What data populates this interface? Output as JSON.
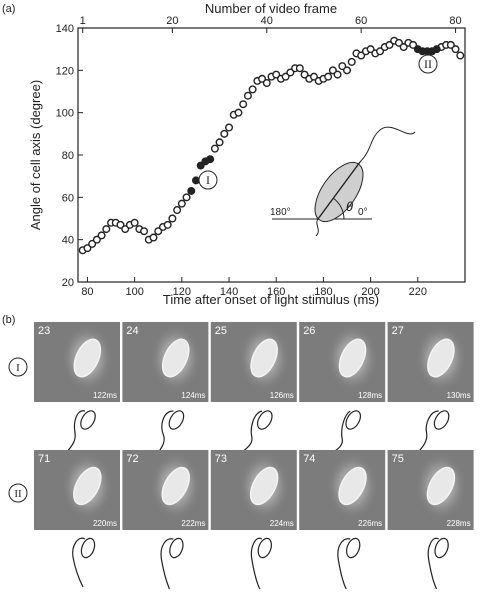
{
  "panel_a_label": "(a)",
  "panel_b_label": "(b)",
  "chart_data": {
    "type": "scatter",
    "title": "",
    "xlabel": "Time after onset of light stimulus (ms)",
    "ylabel": "Angle of cell axis (degree)",
    "top_xlabel": "Number of video frame",
    "xlim": [
      76,
      240
    ],
    "ylim": [
      20,
      140
    ],
    "xticks": [
      80,
      100,
      120,
      140,
      160,
      180,
      200,
      220
    ],
    "yticks": [
      20,
      40,
      60,
      80,
      100,
      120,
      140
    ],
    "top_xticks": [
      1,
      20,
      40,
      60,
      80
    ],
    "grid": false,
    "series": [
      {
        "marker": "open-circle",
        "x": [
          78,
          80,
          82,
          84,
          86,
          88,
          90,
          92,
          94,
          96,
          98,
          100,
          102,
          104,
          106,
          108,
          110,
          112,
          114,
          116,
          118,
          120,
          122,
          134,
          136,
          138,
          140,
          142,
          144,
          146,
          148,
          150,
          152,
          154,
          156,
          158,
          160,
          162,
          164,
          166,
          168,
          170,
          172,
          174,
          176,
          178,
          180,
          182,
          184,
          186,
          188,
          190,
          192,
          194,
          196,
          198,
          200,
          202,
          204,
          206,
          208,
          210,
          212,
          214,
          216,
          218,
          230,
          232,
          234,
          236,
          238
        ],
        "values": [
          35,
          36,
          38,
          40,
          42,
          45,
          48,
          48,
          47,
          45,
          47,
          48,
          45,
          44,
          40,
          41,
          44,
          46,
          47,
          50,
          54,
          57,
          60,
          83,
          86,
          90,
          93,
          99,
          100,
          104,
          108,
          111,
          115,
          116,
          114,
          117,
          118,
          116,
          117,
          119,
          121,
          121,
          118,
          116,
          117,
          115,
          116,
          117,
          120,
          118,
          122,
          120,
          124,
          128,
          127,
          129,
          130,
          128,
          129,
          131,
          132,
          134,
          133,
          131,
          133,
          132,
          131,
          132,
          132,
          130,
          127
        ]
      },
      {
        "marker": "filled-circle",
        "x": [
          124,
          126,
          128,
          130,
          132,
          220,
          222,
          224,
          226,
          228
        ],
        "values": [
          63,
          68,
          75,
          77,
          78,
          130,
          129,
          129,
          129,
          130
        ]
      }
    ],
    "annotations": [
      {
        "label": "I",
        "x": 128,
        "y": 68
      },
      {
        "label": "II",
        "x": 224,
        "y": 129
      }
    ]
  },
  "inset": {
    "left_angle": "180°",
    "right_angle": "0°",
    "theta": "θ"
  },
  "row_I": {
    "label": "I",
    "frames": [
      {
        "number": "23",
        "time": "122ms"
      },
      {
        "number": "24",
        "time": "124ms"
      },
      {
        "number": "25",
        "time": "126ms"
      },
      {
        "number": "26",
        "time": "128ms"
      },
      {
        "number": "27",
        "time": "130ms"
      }
    ]
  },
  "row_II": {
    "label": "II",
    "frames": [
      {
        "number": "71",
        "time": "220ms"
      },
      {
        "number": "72",
        "time": "222ms"
      },
      {
        "number": "73",
        "time": "224ms"
      },
      {
        "number": "74",
        "time": "226ms"
      },
      {
        "number": "75",
        "time": "228ms"
      }
    ]
  },
  "colors": {
    "ink": "#222222",
    "cell_fill": "#cfcfcf",
    "micrograph_bg": "#7c7c7c"
  }
}
